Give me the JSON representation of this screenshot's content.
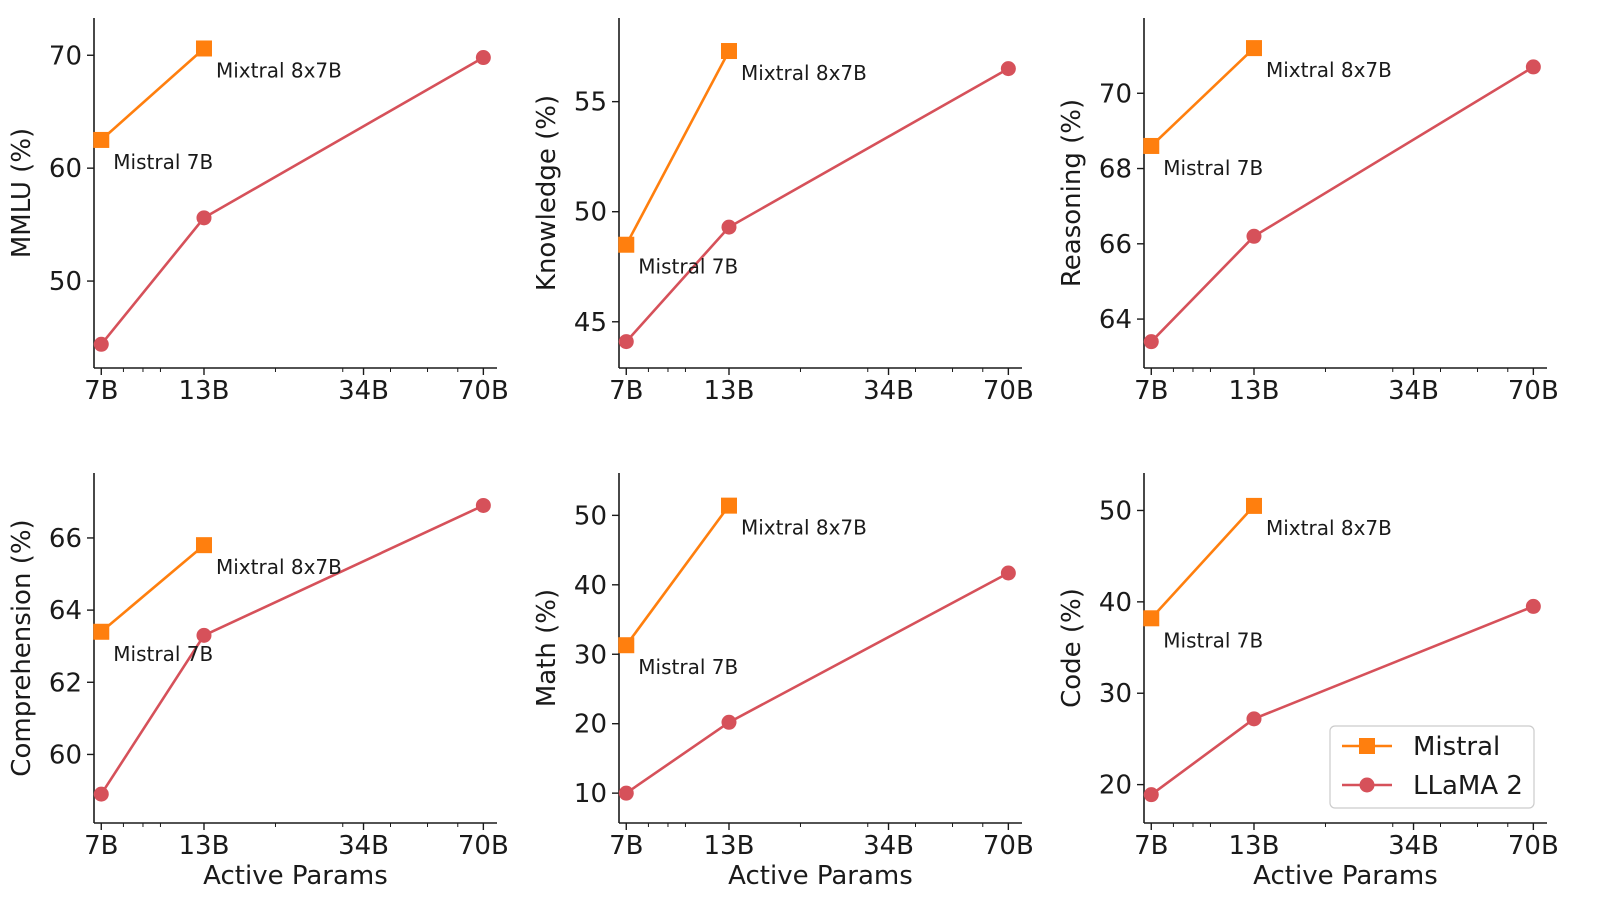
{
  "legend": {
    "placement": "lower-right",
    "panel_index": 5,
    "entries": [
      {
        "label": "Mistral",
        "color": "#ff7f0e",
        "marker": "square"
      },
      {
        "label": "LLaMA 2",
        "color": "#d6515a",
        "marker": "circle"
      }
    ]
  },
  "chart_data": [
    {
      "type": "line",
      "ylabel": "MMLU (%)",
      "xlabel": "",
      "xscale": "log",
      "xlim": [
        6.7,
        76
      ],
      "ylim": [
        42.3,
        73.3
      ],
      "x_ticks": [
        7,
        13,
        34,
        70
      ],
      "x_tick_labels": [
        "7B",
        "13B",
        "34B",
        "70B"
      ],
      "y_ticks": [
        50,
        60,
        70
      ],
      "series": [
        {
          "name": "Mistral",
          "x": [
            7,
            13
          ],
          "y": [
            62.5,
            70.6
          ]
        },
        {
          "name": "LLaMA 2",
          "x": [
            7,
            13,
            70
          ],
          "y": [
            44.4,
            55.6,
            69.8
          ]
        }
      ],
      "annotations": [
        {
          "text": "Mistral 7B",
          "x": 7,
          "y": 62.5
        },
        {
          "text": "Mixtral 8x7B",
          "x": 13,
          "y": 70.6
        }
      ]
    },
    {
      "type": "line",
      "ylabel": "Knowledge (%)",
      "xlabel": "",
      "xscale": "log",
      "xlim": [
        6.7,
        76
      ],
      "ylim": [
        42.9,
        58.8
      ],
      "x_ticks": [
        7,
        13,
        34,
        70
      ],
      "x_tick_labels": [
        "7B",
        "13B",
        "34B",
        "70B"
      ],
      "y_ticks": [
        45,
        50,
        55
      ],
      "series": [
        {
          "name": "Mistral",
          "x": [
            7,
            13
          ],
          "y": [
            48.5,
            57.3
          ]
        },
        {
          "name": "LLaMA 2",
          "x": [
            7,
            13,
            70
          ],
          "y": [
            44.1,
            49.3,
            56.5
          ]
        }
      ],
      "annotations": [
        {
          "text": "Mistral 7B",
          "x": 7,
          "y": 48.5
        },
        {
          "text": "Mixtral 8x7B",
          "x": 13,
          "y": 57.3
        }
      ]
    },
    {
      "type": "line",
      "ylabel": "Reasoning (%)",
      "xlabel": "",
      "xscale": "log",
      "xlim": [
        6.7,
        76
      ],
      "ylim": [
        62.7,
        72.0
      ],
      "x_ticks": [
        7,
        13,
        34,
        70
      ],
      "x_tick_labels": [
        "7B",
        "13B",
        "34B",
        "70B"
      ],
      "y_ticks": [
        64,
        66,
        68,
        70
      ],
      "series": [
        {
          "name": "Mistral",
          "x": [
            7,
            13
          ],
          "y": [
            68.6,
            71.2
          ]
        },
        {
          "name": "LLaMA 2",
          "x": [
            7,
            13,
            70
          ],
          "y": [
            63.4,
            66.2,
            70.7
          ]
        }
      ],
      "annotations": [
        {
          "text": "Mistral 7B",
          "x": 7,
          "y": 68.6
        },
        {
          "text": "Mixtral 8x7B",
          "x": 13,
          "y": 71.2
        }
      ]
    },
    {
      "type": "line",
      "ylabel": "Comprehension (%)",
      "xlabel": "Active Params",
      "xscale": "log",
      "xlim": [
        6.7,
        76
      ],
      "ylim": [
        58.1,
        67.8
      ],
      "x_ticks": [
        7,
        13,
        34,
        70
      ],
      "x_tick_labels": [
        "7B",
        "13B",
        "34B",
        "70B"
      ],
      "y_ticks": [
        60,
        62,
        64,
        66
      ],
      "series": [
        {
          "name": "Mistral",
          "x": [
            7,
            13
          ],
          "y": [
            63.4,
            65.8
          ]
        },
        {
          "name": "LLaMA 2",
          "x": [
            7,
            13,
            70
          ],
          "y": [
            58.9,
            63.3,
            66.9
          ]
        }
      ],
      "annotations": [
        {
          "text": "Mistral 7B",
          "x": 7,
          "y": 63.4
        },
        {
          "text": "Mixtral 8x7B",
          "x": 13,
          "y": 65.8
        }
      ]
    },
    {
      "type": "line",
      "ylabel": "Math (%)",
      "xlabel": "Active Params",
      "xscale": "log",
      "xlim": [
        6.7,
        76
      ],
      "ylim": [
        5.7,
        56.1
      ],
      "x_ticks": [
        7,
        13,
        34,
        70
      ],
      "x_tick_labels": [
        "7B",
        "13B",
        "34B",
        "70B"
      ],
      "y_ticks": [
        10,
        20,
        30,
        40,
        50
      ],
      "series": [
        {
          "name": "Mistral",
          "x": [
            7,
            13
          ],
          "y": [
            31.3,
            51.4
          ]
        },
        {
          "name": "LLaMA 2",
          "x": [
            7,
            13,
            70
          ],
          "y": [
            10.0,
            20.2,
            41.7
          ]
        }
      ],
      "annotations": [
        {
          "text": "Mistral 7B",
          "x": 7,
          "y": 31.3
        },
        {
          "text": "Mixtral 8x7B",
          "x": 13,
          "y": 51.4
        }
      ]
    },
    {
      "type": "line",
      "ylabel": "Code (%)",
      "xlabel": "Active Params",
      "xscale": "log",
      "xlim": [
        6.7,
        76
      ],
      "ylim": [
        15.8,
        54.1
      ],
      "x_ticks": [
        7,
        13,
        34,
        70
      ],
      "x_tick_labels": [
        "7B",
        "13B",
        "34B",
        "70B"
      ],
      "y_ticks": [
        20,
        30,
        40,
        50
      ],
      "series": [
        {
          "name": "Mistral",
          "x": [
            7,
            13
          ],
          "y": [
            38.2,
            50.5
          ]
        },
        {
          "name": "LLaMA 2",
          "x": [
            7,
            13,
            70
          ],
          "y": [
            18.9,
            27.2,
            39.5
          ]
        }
      ],
      "annotations": [
        {
          "text": "Mistral 7B",
          "x": 7,
          "y": 38.2
        },
        {
          "text": "Mixtral 8x7B",
          "x": 13,
          "y": 50.5
        }
      ]
    }
  ]
}
